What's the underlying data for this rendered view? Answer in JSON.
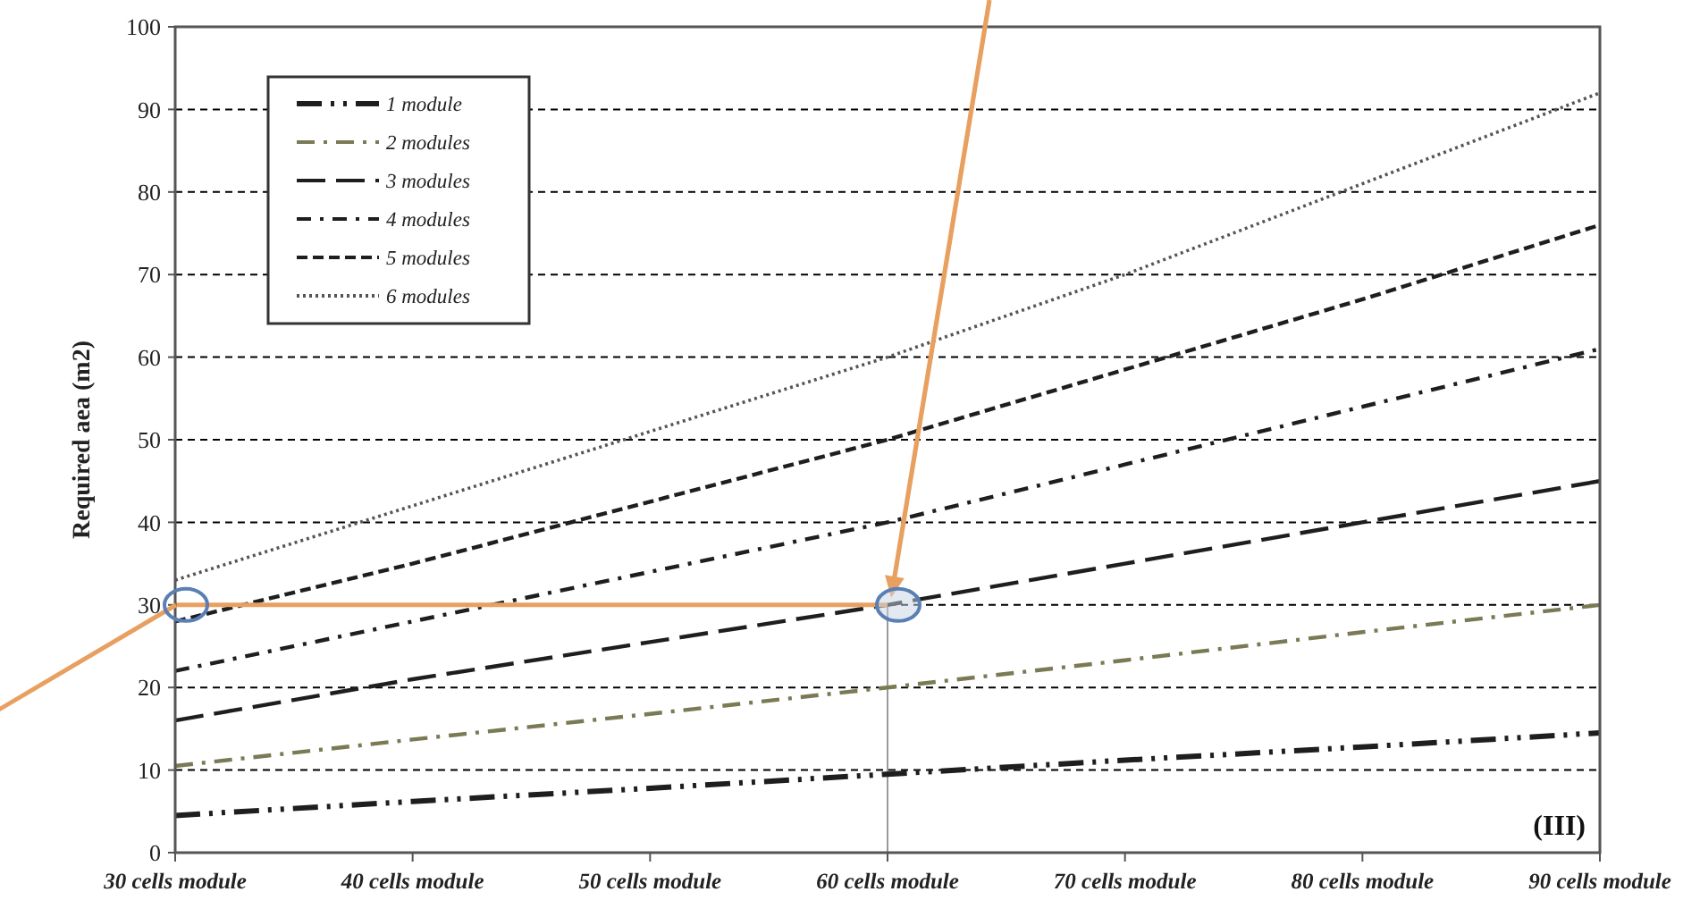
{
  "chart_data": {
    "type": "line",
    "ylabel": "Required aea (m2)",
    "categories": [
      "30 cells module",
      "40 cells module",
      "50 cells module",
      "60 cells module",
      "70 cells module",
      "80 cells module",
      "90 cells module"
    ],
    "series": [
      {
        "name": "1 module",
        "color": "#1e1e1e",
        "line_style": "dashed",
        "values": [
          4.5,
          6.2,
          7.8,
          9.5,
          11.2,
          12.8,
          14.5
        ]
      },
      {
        "name": "2 modules",
        "color": "#7a7a55",
        "line_style": "dashed",
        "values": [
          10.5,
          13.7,
          16.8,
          20,
          23.3,
          26.7,
          30
        ]
      },
      {
        "name": "3 modules",
        "color": "#1e1e1e",
        "line_style": "dashed",
        "values": [
          16,
          21,
          25.5,
          30,
          35,
          40,
          45
        ]
      },
      {
        "name": "4 modules",
        "color": "#1e1e1e",
        "line_style": "dashed",
        "values": [
          22,
          28,
          34,
          40,
          47,
          54,
          61
        ]
      },
      {
        "name": "5 modules",
        "color": "#1e1e1e",
        "line_style": "dashed",
        "values": [
          28,
          35,
          42.5,
          50,
          58.5,
          67,
          76
        ]
      },
      {
        "name": "6 modules",
        "color": "#555555",
        "line_style": "dotted",
        "values": [
          33,
          42,
          51,
          60,
          70,
          81,
          92
        ]
      },
      {
        "color": "#e8a060",
        "line_style": "solid",
        "values": [
          30,
          30,
          30,
          30,
          null,
          null,
          null
        ]
      }
    ],
    "ylim": [
      0,
      100
    ],
    "yticks": [
      0,
      10,
      20,
      30,
      40,
      50,
      60,
      70,
      80,
      90,
      100
    ],
    "grid": "y",
    "legend": "top left",
    "marker": "none",
    "annotations": [
      "(III)"
    ]
  }
}
